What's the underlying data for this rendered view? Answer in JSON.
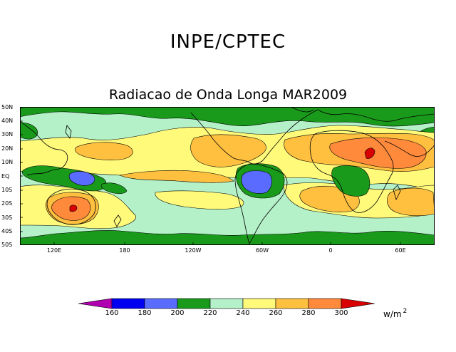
{
  "header": {
    "org_title": "INPE/CPTEC",
    "map_title": "Radiacao de Onda Longa MAR2009"
  },
  "axes": {
    "lat_labels": [
      "50N",
      "40N",
      "30N",
      "20N",
      "10N",
      "EQ",
      "10S",
      "20S",
      "30S",
      "40S",
      "50S"
    ],
    "lon_labels": [
      "120E",
      "180",
      "120W",
      "60W",
      "0",
      "60E"
    ]
  },
  "legend": {
    "ticks": [
      "160",
      "180",
      "200",
      "220",
      "240",
      "260",
      "280",
      "300"
    ],
    "unit": "w/m",
    "unit_exp": "2",
    "colors": [
      "#b000b0",
      "#0000f0",
      "#5a6cff",
      "#1a9a1a",
      "#b4f0c8",
      "#fffa7a",
      "#ffc040",
      "#ff8a3c",
      "#d80000"
    ]
  }
}
